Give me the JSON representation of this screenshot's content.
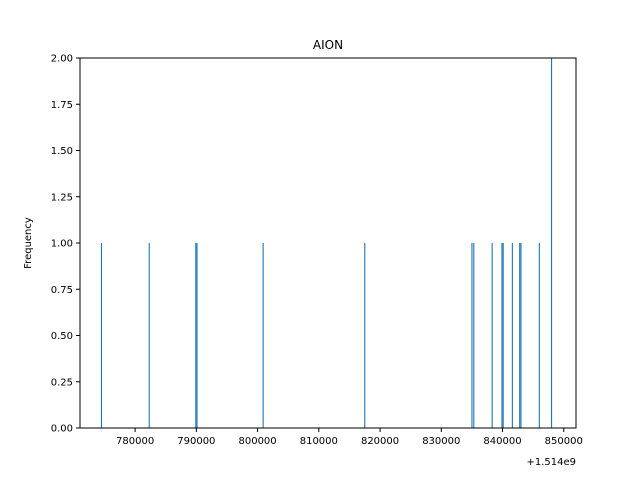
{
  "chart_data": {
    "type": "bar",
    "title": "AION",
    "xlabel": "",
    "ylabel": "Frequency",
    "x_offset_label": "+1.514e9",
    "xlim": [
      771000,
      852000
    ],
    "ylim": [
      0,
      2.0
    ],
    "xticks": [
      780000,
      790000,
      800000,
      810000,
      820000,
      830000,
      840000,
      850000
    ],
    "xtick_labels": [
      "780000",
      "790000",
      "800000",
      "810000",
      "820000",
      "830000",
      "840000",
      "850000"
    ],
    "yticks": [
      0,
      0.25,
      0.5,
      0.75,
      1.0,
      1.25,
      1.5,
      1.75,
      2.0
    ],
    "ytick_labels": [
      "0.00",
      "0.25",
      "0.50",
      "0.75",
      "1.00",
      "1.25",
      "1.50",
      "1.75",
      "2.00"
    ],
    "bar_color": "#1f77b4",
    "grid": false,
    "bars": [
      {
        "x": 774500,
        "value": 1
      },
      {
        "x": 782300,
        "value": 1
      },
      {
        "x": 789900,
        "value": 1
      },
      {
        "x": 790100,
        "value": 1
      },
      {
        "x": 800900,
        "value": 1
      },
      {
        "x": 817500,
        "value": 1
      },
      {
        "x": 835000,
        "value": 1
      },
      {
        "x": 835300,
        "value": 1
      },
      {
        "x": 838300,
        "value": 1
      },
      {
        "x": 839900,
        "value": 1
      },
      {
        "x": 840100,
        "value": 1
      },
      {
        "x": 841600,
        "value": 1
      },
      {
        "x": 842800,
        "value": 1
      },
      {
        "x": 843000,
        "value": 1
      },
      {
        "x": 846000,
        "value": 1
      },
      {
        "x": 848000,
        "value": 2
      }
    ]
  }
}
